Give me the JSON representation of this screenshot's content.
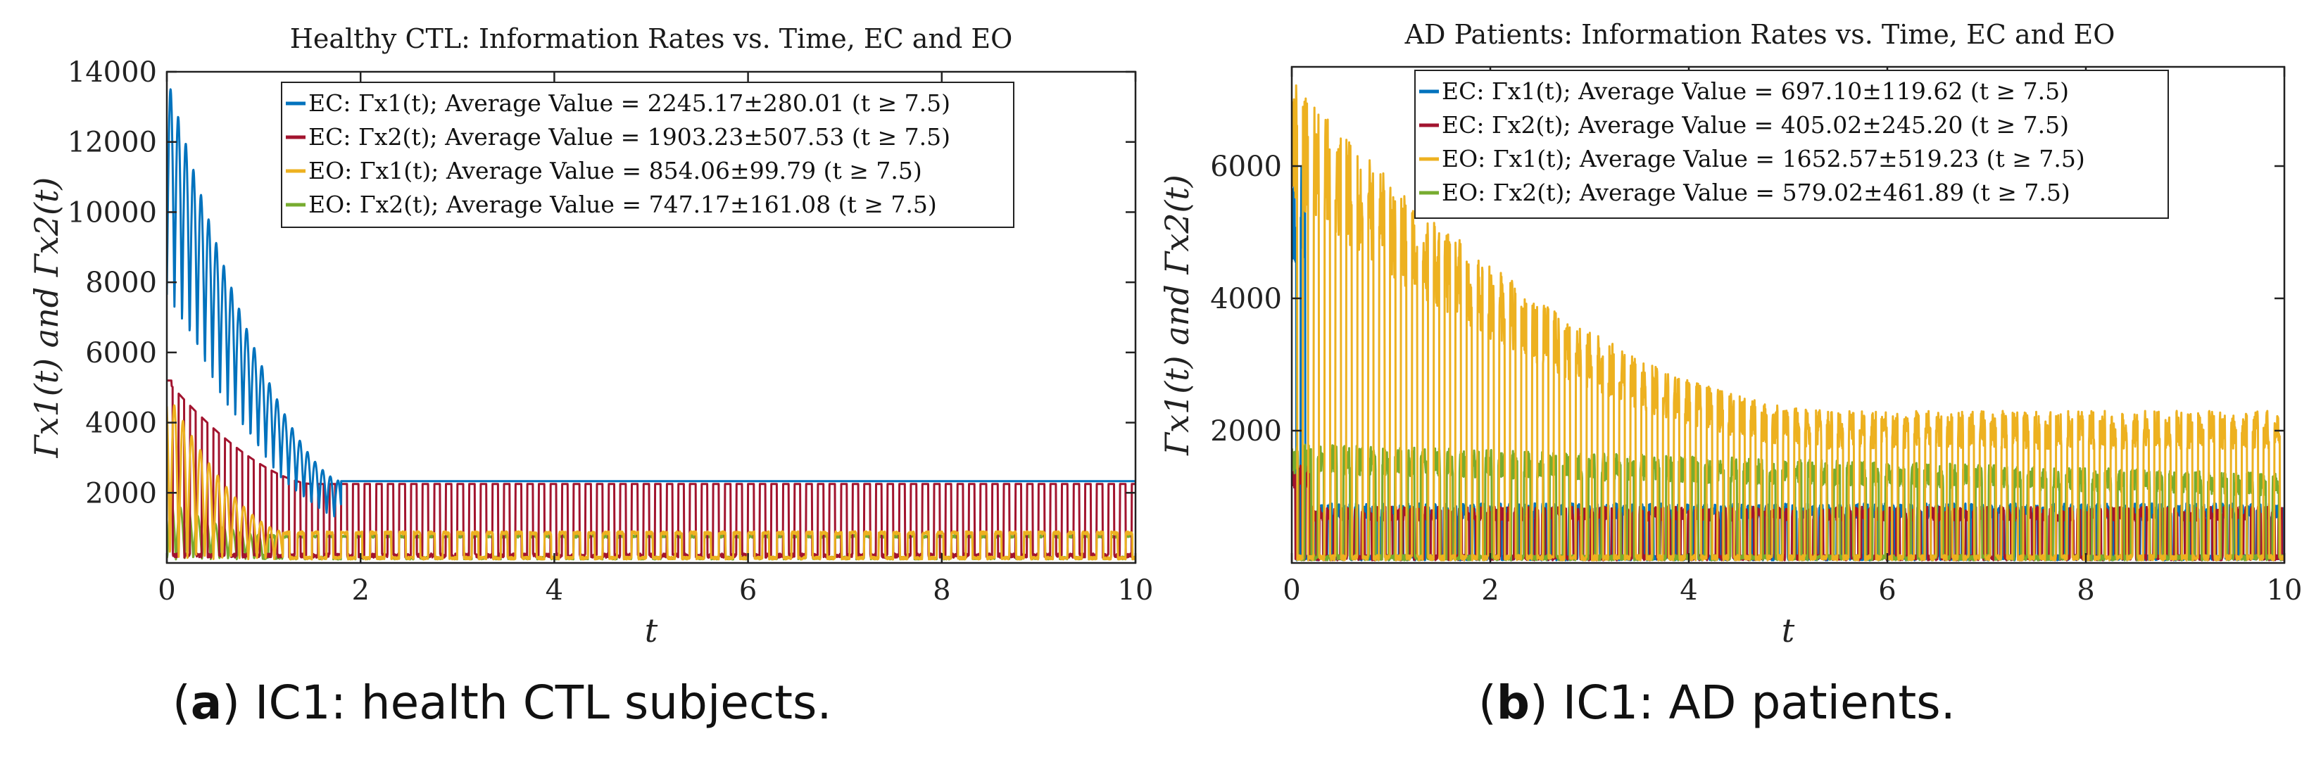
{
  "captions": {
    "a": {
      "letter": "a",
      "text": "IC1: health CTL subjects."
    },
    "b": {
      "letter": "b",
      "text": "IC1: AD patients."
    }
  },
  "colors": {
    "ec1": "#0072BD",
    "ec2": "#A2142F",
    "eo1": "#EDB120",
    "eo2": "#77AC30"
  },
  "chart_data": [
    {
      "type": "line",
      "title": "Healthy CTL: Information Rates vs. Time, EC and EO",
      "xlabel": "t",
      "ylabel": "Γx1(t) and Γx2(t)",
      "xlim": [
        0,
        10
      ],
      "ylim": [
        0,
        14000
      ],
      "xticks": [
        0,
        2,
        4,
        6,
        8,
        10
      ],
      "yticks": [
        2000,
        4000,
        6000,
        8000,
        10000,
        12000,
        14000
      ],
      "legend_position": "top-right",
      "grid": false,
      "series": [
        {
          "name": "EC: Γx1(t); Average Value = 2245.17±280.01 (t ≥ 7.5)",
          "color": "#0072BD",
          "peak": 13900,
          "settled": 2330,
          "settle_time": 1.8,
          "period": 0.16
        },
        {
          "name": "EC: Γx2(t); Average Value = 1903.23±507.53 (t ≥ 7.5)",
          "color": "#A2142F",
          "peak": 5200,
          "settled": 2250,
          "settled_low": 150,
          "settle_time": 1.5,
          "period": 0.12
        },
        {
          "name": "EO: Γx1(t); Average Value = 854.06±99.79 (t ≥ 7.5)",
          "color": "#EDB120",
          "peak": 4900,
          "settled": 900,
          "settle_time": 1.2,
          "period": 0.15
        },
        {
          "name": "EO: Γx2(t); Average Value = 747.17±161.08 (t ≥ 7.5)",
          "color": "#77AC30",
          "peak": 1800,
          "settled": 800,
          "settle_time": 1.0,
          "period": 0.15
        }
      ]
    },
    {
      "type": "line",
      "title": "AD Patients: Information Rates vs. Time, EC and EO",
      "xlabel": "t",
      "ylabel": "Γx1(t) and Γx2(t)",
      "xlim": [
        0,
        10
      ],
      "ylim": [
        0,
        7500
      ],
      "xticks": [
        0,
        2,
        4,
        6,
        8,
        10
      ],
      "yticks": [
        2000,
        4000,
        6000
      ],
      "legend_position": "top-right",
      "grid": false,
      "series": [
        {
          "name": "EC: Γx1(t); Average Value = 697.10±119.62 (t ≥ 7.5)",
          "color": "#0072BD",
          "peak": 6000,
          "settled": 900,
          "period": 0.09
        },
        {
          "name": "EC: Γx2(t); Average Value = 405.02±245.20 (t ≥ 7.5)",
          "color": "#A2142F",
          "peak": 1500,
          "settled": 850,
          "period": 0.07
        },
        {
          "name": "EO: Γx1(t); Average Value = 1652.57±519.23 (t ≥ 7.5)",
          "color": "#EDB120",
          "peak": 7300,
          "settled": 2300,
          "period": 0.11
        },
        {
          "name": "EO: Γx2(t); Average Value = 579.02±461.89 (t ≥ 7.5)",
          "color": "#77AC30",
          "peak": 2100,
          "settled": 1800,
          "period": 0.13
        }
      ]
    }
  ]
}
